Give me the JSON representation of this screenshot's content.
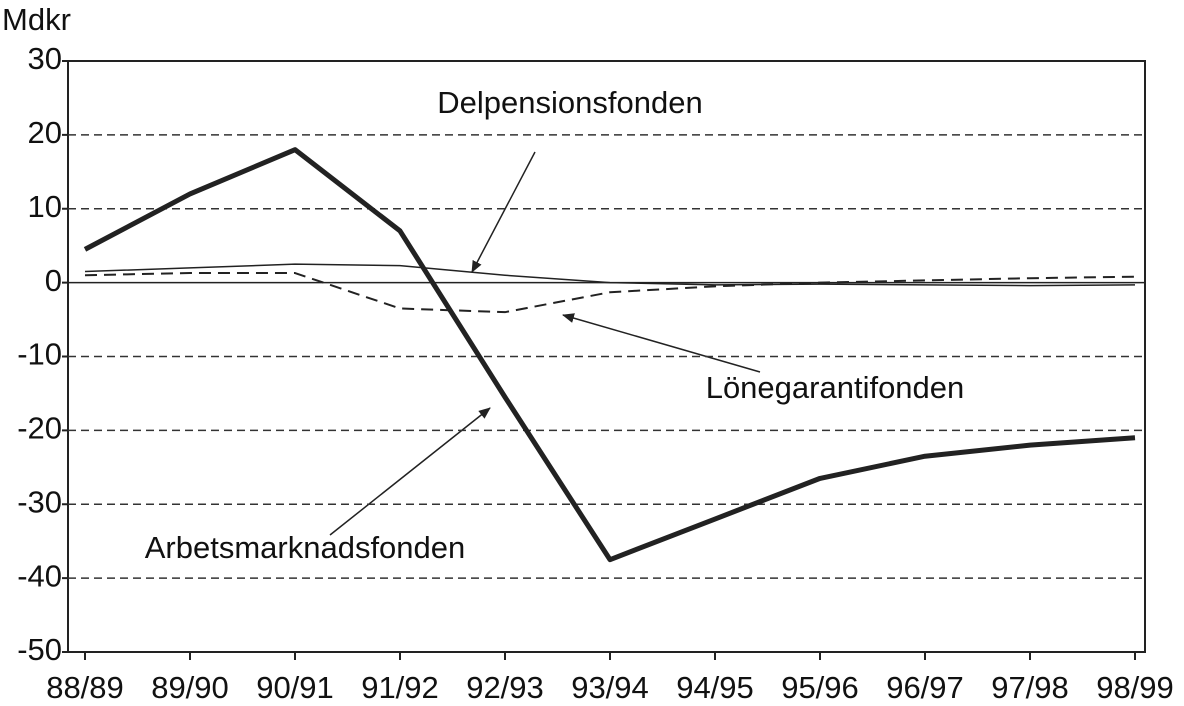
{
  "chart_data": {
    "type": "line",
    "ylabel": "Mdkr",
    "categories": [
      "88/89",
      "89/90",
      "90/91",
      "91/92",
      "92/93",
      "93/94",
      "94/95",
      "95/96",
      "96/97",
      "97/98",
      "98/99"
    ],
    "series": [
      {
        "name": "Arbetsmarknadsfonden",
        "color": "#222222",
        "line_style": "solid",
        "linewidth": 5,
        "values": [
          4.5,
          12,
          18,
          7,
          -15.5,
          -37.5,
          -32,
          -26.5,
          -23.5,
          -22,
          -21
        ]
      },
      {
        "name": "Delpensionsfonden",
        "color": "#222222",
        "line_style": "solid",
        "linewidth": 1.5,
        "values": [
          1.5,
          2,
          2.5,
          2.3,
          1,
          0,
          -0.3,
          -0.2,
          -0.3,
          -0.4,
          -0.3
        ]
      },
      {
        "name": "Lönegarantifonden",
        "color": "#222222",
        "line_style": "dashed",
        "linewidth": 2,
        "values": [
          1,
          1.3,
          1.3,
          -3.5,
          -4,
          -1.3,
          -0.5,
          0,
          0.3,
          0.6,
          0.8
        ]
      }
    ],
    "ylim": [
      -50,
      30
    ],
    "yticks": [
      -50,
      -40,
      -30,
      -20,
      -10,
      0,
      10,
      20,
      30
    ],
    "grid": true
  }
}
